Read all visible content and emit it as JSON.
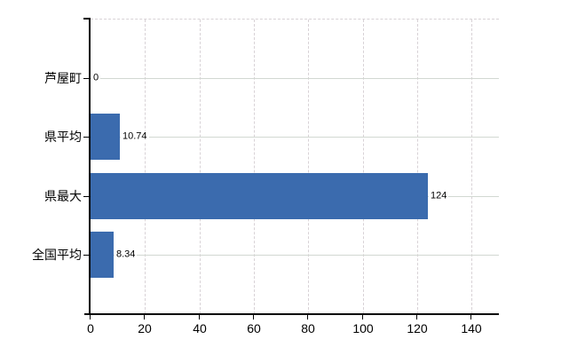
{
  "chart_data": {
    "type": "bar",
    "orientation": "horizontal",
    "title": "",
    "xlabel": "",
    "ylabel": "",
    "categories": [
      "芦屋町",
      "県平均",
      "県最大",
      "全国平均"
    ],
    "values": [
      0,
      10.74,
      124,
      8.34
    ],
    "value_labels": [
      "0",
      "10.74",
      "124",
      "8.34"
    ],
    "xlim": [
      0,
      150
    ],
    "x_tick_values": [
      0,
      20,
      40,
      60,
      80,
      100,
      120,
      140
    ],
    "x_tick_labels": [
      "0",
      "20",
      "40",
      "60",
      "80",
      "100",
      "120",
      "140"
    ],
    "grid": true,
    "legend_position": "none",
    "colors": {
      "bar": "#3b6bae",
      "axis": "#000000",
      "grid_horizontal": "#d2d8d2",
      "grid_vertical": "#d8d2d6",
      "text": "#000000",
      "background": "#ffffff"
    }
  }
}
